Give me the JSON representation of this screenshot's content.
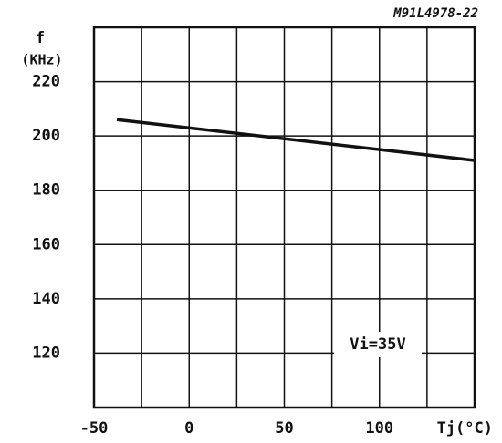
{
  "chart_data": {
    "type": "line",
    "title": "M91L4978-22",
    "y_label_top": "f",
    "ylabel": "(KHz)",
    "xlabel": "Tj(°C)",
    "annotation": "Vi=35V",
    "x": [
      -38,
      150
    ],
    "series": [
      {
        "name": "f",
        "color": "#111111",
        "values": [
          206,
          191
        ]
      }
    ],
    "xlim": [
      -50,
      150
    ],
    "xticks": [
      -50,
      0,
      50,
      100
    ],
    "xgrid": [
      -25,
      25,
      75,
      125
    ],
    "ylim": [
      100,
      240
    ],
    "yticks": [
      120,
      140,
      160,
      180,
      200,
      220
    ],
    "grid": true
  }
}
